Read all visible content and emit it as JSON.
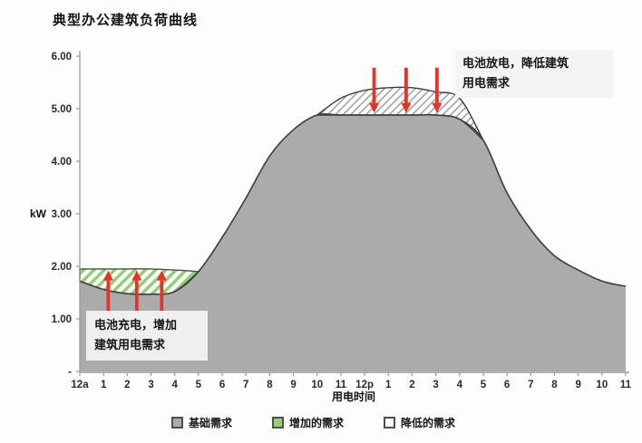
{
  "chart_data": {
    "type": "area",
    "title": "典型办公建筑负荷曲线",
    "xlabel": "用电时间",
    "ylabel": "kW",
    "ylim": [
      0,
      6
    ],
    "grid": false,
    "legend_position": "bottom",
    "y_ticks": [
      0,
      1,
      2,
      3,
      4,
      5,
      6
    ],
    "y_tick_labels": [
      "-",
      "1.00",
      "2.00",
      "3.00",
      "4.00",
      "5.00",
      "6.00"
    ],
    "x_tick_labels": [
      "12a",
      "1",
      "2",
      "3",
      "4",
      "5",
      "6",
      "7",
      "8",
      "9",
      "10",
      "11",
      "12p",
      "1",
      "2",
      "3",
      "4",
      "5",
      "6",
      "7",
      "8",
      "9",
      "10",
      "11"
    ],
    "series": [
      {
        "name": "original_building_load",
        "values": [
          1.72,
          1.56,
          1.48,
          1.47,
          1.52,
          1.9,
          2.55,
          3.3,
          4.1,
          4.6,
          4.88,
          5.2,
          5.35,
          5.4,
          5.4,
          5.32,
          5.2,
          4.4,
          3.4,
          2.7,
          2.2,
          1.93,
          1.72,
          1.62
        ]
      },
      {
        "name": "battery_adjusted_load",
        "values": [
          1.95,
          1.95,
          1.95,
          1.95,
          1.93,
          1.9,
          2.55,
          3.3,
          4.1,
          4.6,
          4.88,
          4.88,
          4.88,
          4.88,
          4.88,
          4.88,
          4.8,
          4.4,
          3.4,
          2.7,
          2.2,
          1.93,
          1.72,
          1.62
        ]
      }
    ],
    "charge_region_hours": [
      0,
      5
    ],
    "discharge_region_hours": [
      10,
      17
    ],
    "legend": [
      {
        "label": "基础需求",
        "swatch": "base"
      },
      {
        "label": "增加的需求",
        "swatch": "added"
      },
      {
        "label": "降低的需求",
        "swatch": "reduced"
      }
    ],
    "annotations": [
      {
        "id": "charge",
        "lines": [
          "电池充电，增加",
          "建筑用电需求"
        ],
        "arrow_direction": "up",
        "arrow_hours": [
          1.2,
          2.4,
          3.45
        ],
        "arrow_from_kw": 1.05,
        "arrow_to_kw": 1.92
      },
      {
        "id": "discharge",
        "lines": [
          "电池放电，降低建筑",
          "用电需求"
        ],
        "arrow_direction": "down",
        "arrow_hours": [
          12.4,
          13.75,
          15.05
        ],
        "arrow_from_kw": 5.78,
        "arrow_to_kw": 4.92
      }
    ],
    "colors": {
      "base_fill": "#ababab",
      "curve_stroke": "#3c3c3c",
      "added_hatch": "#93cd7a",
      "added_border": "#46523c",
      "reduced_hatch_line": "#909090",
      "arrow": "#e73229",
      "axis": "#999999",
      "tick_text": "#2a2a2a",
      "annotation_bg": "#efefef"
    }
  }
}
